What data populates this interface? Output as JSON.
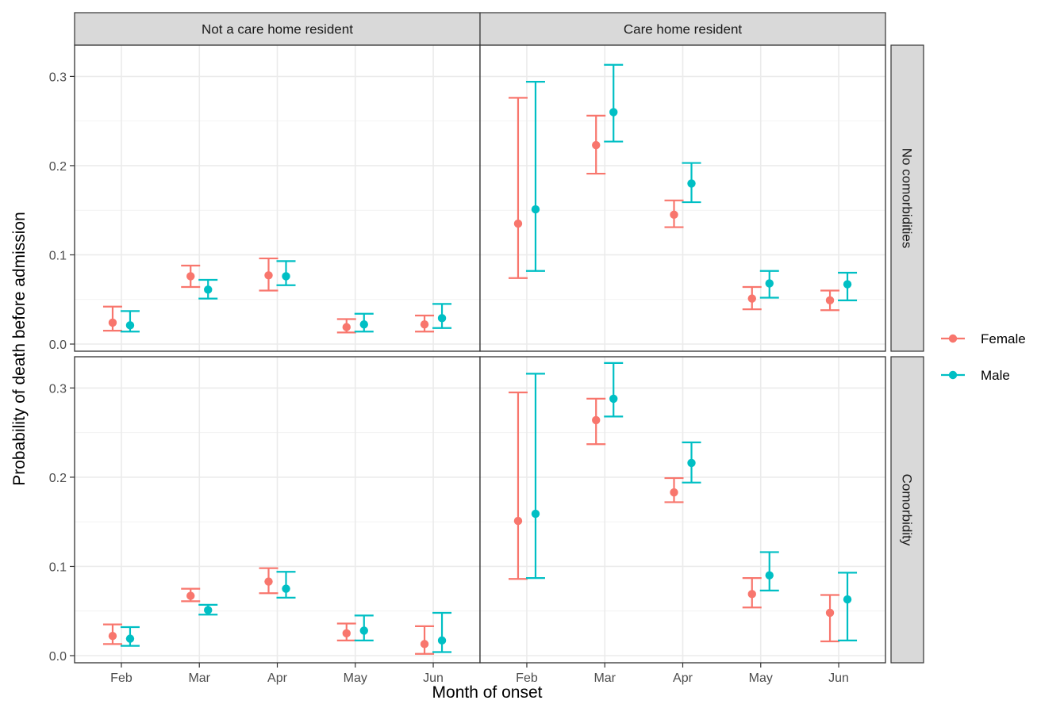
{
  "chart_data": {
    "type": "scatter",
    "subtype": "point-range (point with error bars), faceted grid",
    "xlabel": "Month of onset",
    "ylabel": "Probability of death before admission",
    "categories": [
      "Feb",
      "Mar",
      "Apr",
      "May",
      "Jun"
    ],
    "y_ticks": [
      "0.0",
      "0.1",
      "0.2",
      "0.3"
    ],
    "ylim": [
      -0.008,
      0.335
    ],
    "grid": true,
    "legend_position": "right",
    "col_facets": [
      "Not a care home resident",
      "Care home resident"
    ],
    "row_facets": [
      "No comorbidities",
      "Comorbidity"
    ],
    "series": [
      {
        "name": "Female",
        "color": "#F8766D"
      },
      {
        "name": "Male",
        "color": "#00BFC4"
      }
    ],
    "panels": [
      {
        "col": "Not a care home resident",
        "row": "No comorbidities",
        "Female": {
          "y": [
            0.024,
            0.076,
            0.077,
            0.019,
            0.022
          ],
          "lower": [
            0.015,
            0.064,
            0.06,
            0.013,
            0.014
          ],
          "upper": [
            0.042,
            0.088,
            0.096,
            0.028,
            0.032
          ]
        },
        "Male": {
          "y": [
            0.021,
            0.061,
            0.076,
            0.022,
            0.029
          ],
          "lower": [
            0.014,
            0.051,
            0.066,
            0.014,
            0.018
          ],
          "upper": [
            0.037,
            0.072,
            0.093,
            0.034,
            0.045
          ]
        }
      },
      {
        "col": "Care home resident",
        "row": "No comorbidities",
        "Female": {
          "y": [
            0.135,
            0.223,
            0.145,
            0.051,
            0.049
          ],
          "lower": [
            0.074,
            0.191,
            0.131,
            0.039,
            0.038
          ],
          "upper": [
            0.276,
            0.256,
            0.161,
            0.064,
            0.06
          ]
        },
        "Male": {
          "y": [
            0.151,
            0.26,
            0.18,
            0.068,
            0.067
          ],
          "lower": [
            0.082,
            0.227,
            0.159,
            0.052,
            0.049
          ],
          "upper": [
            0.294,
            0.313,
            0.203,
            0.082,
            0.08
          ]
        }
      },
      {
        "col": "Not a care home resident",
        "row": "Comorbidity",
        "Female": {
          "y": [
            0.022,
            0.067,
            0.083,
            0.025,
            0.013
          ],
          "lower": [
            0.013,
            0.061,
            0.07,
            0.017,
            0.002
          ],
          "upper": [
            0.035,
            0.075,
            0.098,
            0.036,
            0.033
          ]
        },
        "Male": {
          "y": [
            0.019,
            0.051,
            0.075,
            0.028,
            0.017
          ],
          "lower": [
            0.011,
            0.046,
            0.065,
            0.017,
            0.004
          ],
          "upper": [
            0.032,
            0.057,
            0.094,
            0.045,
            0.048
          ]
        }
      },
      {
        "col": "Care home resident",
        "row": "Comorbidity",
        "Female": {
          "y": [
            0.151,
            0.264,
            0.183,
            0.069,
            0.048
          ],
          "lower": [
            0.086,
            0.237,
            0.172,
            0.054,
            0.016
          ],
          "upper": [
            0.295,
            0.288,
            0.199,
            0.087,
            0.068
          ]
        },
        "Male": {
          "y": [
            0.159,
            0.288,
            0.216,
            0.09,
            0.063
          ],
          "lower": [
            0.087,
            0.268,
            0.194,
            0.073,
            0.017
          ],
          "upper": [
            0.316,
            0.328,
            0.239,
            0.116,
            0.093
          ]
        }
      }
    ]
  }
}
